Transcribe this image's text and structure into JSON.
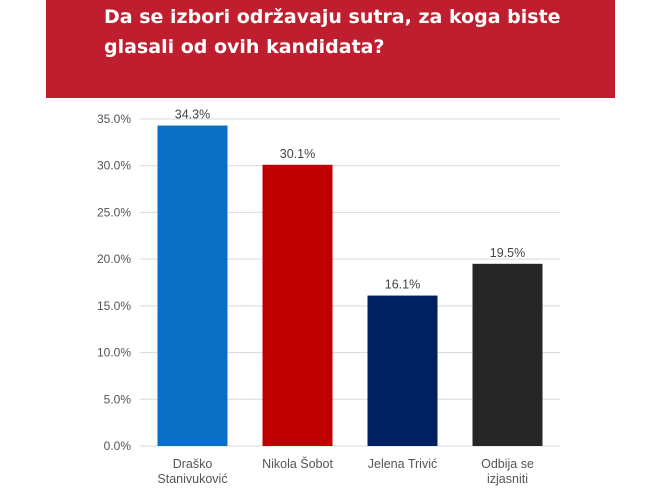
{
  "header": {
    "title_line1": "Da se izbori održavaju sutra, za koga biste",
    "title_line2": "glasali od ovih kandidata?"
  },
  "colors": {
    "banner": "#bf1e2e",
    "grid": "#d9d9d9"
  },
  "chart_data": {
    "type": "bar",
    "title": "Da se izbori održavaju sutra, za koga biste glasali od ovih kandidata?",
    "categories": [
      [
        "Draško",
        "Stanivuković"
      ],
      [
        "Nikola Šobot"
      ],
      [
        "Jelena Trivić"
      ],
      [
        "Odbija se",
        "izjasniti"
      ]
    ],
    "values": [
      34.3,
      30.1,
      16.1,
      19.5
    ],
    "value_labels": [
      "34.3%",
      "30.1%",
      "16.1%",
      "19.5%"
    ],
    "bar_colors": [
      "#0a70c5",
      "#c00000",
      "#002060",
      "#262626"
    ],
    "yticks": [
      "0.0%",
      "5.0%",
      "10.0%",
      "15.0%",
      "20.0%",
      "25.0%",
      "30.0%",
      "35.0%"
    ],
    "ylim": [
      0,
      35
    ],
    "grid": true,
    "legend": "none"
  }
}
